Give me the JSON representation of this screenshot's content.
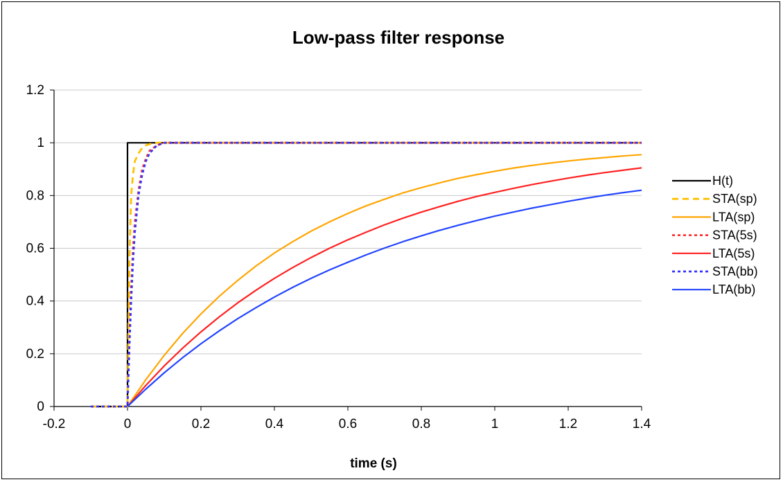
{
  "chart_data": {
    "type": "line",
    "title": "Low-pass filter response",
    "xlabel": "time (s)",
    "ylabel": "",
    "xlim": [
      -0.2,
      1.4
    ],
    "ylim": [
      0,
      1.2
    ],
    "xticks": [
      "-0.2",
      "0",
      "0.2",
      "0.4",
      "0.6",
      "0.8",
      "1",
      "1.2",
      "1.4"
    ],
    "yticks": [
      "0",
      "0.2",
      "0.4",
      "0.6",
      "0.8",
      "1",
      "1.2"
    ],
    "grid": "horizontal",
    "legend_position": "right",
    "series": [
      {
        "name": "H(t)",
        "color": "#000000",
        "dash": "solid",
        "x": [
          -0.1,
          -0.005,
          0.0,
          0.0,
          1.4
        ],
        "y": [
          0,
          0,
          0,
          1,
          1
        ]
      },
      {
        "name": "STA(sp)",
        "color": "#FFC000",
        "dash": "dashed",
        "x": [
          -0.1,
          -0.005,
          0.0,
          0.005,
          0.01,
          0.015,
          0.02,
          0.03,
          0.04,
          0.05,
          0.06,
          0.08,
          0.1,
          1.4
        ],
        "y": [
          0,
          0,
          0,
          0.55,
          0.8,
          0.88,
          0.93,
          0.96,
          0.98,
          0.99,
          0.995,
          1,
          1,
          1
        ]
      },
      {
        "name": "LTA(sp)",
        "color": "#FFA500",
        "dash": "solid",
        "x": [
          0,
          0.05,
          0.1,
          0.15,
          0.2,
          0.25,
          0.3,
          0.35,
          0.4,
          0.45,
          0.5,
          0.55,
          0.6,
          0.65,
          0.7,
          0.75,
          0.8,
          0.85,
          0.9,
          0.95,
          1.0,
          1.05,
          1.1,
          1.15,
          1.2,
          1.25,
          1.3,
          1.35,
          1.4
        ],
        "y": [
          0,
          0.102,
          0.194,
          0.277,
          0.351,
          0.418,
          0.478,
          0.533,
          0.582,
          0.625,
          0.665,
          0.7,
          0.732,
          0.761,
          0.786,
          0.81,
          0.83,
          0.848,
          0.865,
          0.879,
          0.892,
          0.904,
          0.914,
          0.923,
          0.931,
          0.938,
          0.944,
          0.95,
          0.955
        ]
      },
      {
        "name": "STA(5s)",
        "color": "#FF3030",
        "dash": "dotted",
        "x": [
          -0.1,
          -0.005,
          0.0,
          0.005,
          0.01,
          0.015,
          0.02,
          0.03,
          0.04,
          0.05,
          0.06,
          0.08,
          0.1,
          1.4
        ],
        "y": [
          0,
          0,
          0,
          0.25,
          0.45,
          0.6,
          0.7,
          0.82,
          0.9,
          0.94,
          0.97,
          0.99,
          1,
          1
        ]
      },
      {
        "name": "LTA(5s)",
        "color": "#FF2020",
        "dash": "solid",
        "x": [
          0,
          0.05,
          0.1,
          0.15,
          0.2,
          0.25,
          0.3,
          0.35,
          0.4,
          0.45,
          0.5,
          0.55,
          0.6,
          0.65,
          0.7,
          0.75,
          0.8,
          0.85,
          0.9,
          0.95,
          1.0,
          1.05,
          1.1,
          1.15,
          1.2,
          1.25,
          1.3,
          1.35,
          1.4
        ],
        "y": [
          0,
          0.08,
          0.154,
          0.221,
          0.283,
          0.34,
          0.393,
          0.441,
          0.486,
          0.527,
          0.565,
          0.6,
          0.632,
          0.661,
          0.689,
          0.714,
          0.737,
          0.758,
          0.778,
          0.796,
          0.812,
          0.827,
          0.841,
          0.854,
          0.866,
          0.877,
          0.887,
          0.896,
          0.905
        ]
      },
      {
        "name": "STA(bb)",
        "color": "#3333FF",
        "dash": "dotted",
        "x": [
          -0.1,
          -0.005,
          0.0,
          0.005,
          0.01,
          0.015,
          0.02,
          0.03,
          0.04,
          0.05,
          0.06,
          0.08,
          0.1,
          1.4
        ],
        "y": [
          0,
          0,
          0,
          0.22,
          0.4,
          0.55,
          0.66,
          0.8,
          0.88,
          0.93,
          0.96,
          0.99,
          1,
          1
        ]
      },
      {
        "name": "LTA(bb)",
        "color": "#2244FF",
        "dash": "solid",
        "x": [
          0,
          0.05,
          0.1,
          0.15,
          0.2,
          0.25,
          0.3,
          0.35,
          0.4,
          0.45,
          0.5,
          0.55,
          0.6,
          0.65,
          0.7,
          0.75,
          0.8,
          0.85,
          0.9,
          0.95,
          1.0,
          1.05,
          1.1,
          1.15,
          1.2,
          1.25,
          1.3,
          1.35,
          1.4
        ],
        "y": [
          0,
          0.066,
          0.128,
          0.185,
          0.238,
          0.287,
          0.333,
          0.375,
          0.415,
          0.452,
          0.486,
          0.518,
          0.547,
          0.575,
          0.601,
          0.625,
          0.647,
          0.668,
          0.687,
          0.705,
          0.722,
          0.737,
          0.752,
          0.765,
          0.778,
          0.79,
          0.801,
          0.811,
          0.82
        ]
      }
    ]
  }
}
